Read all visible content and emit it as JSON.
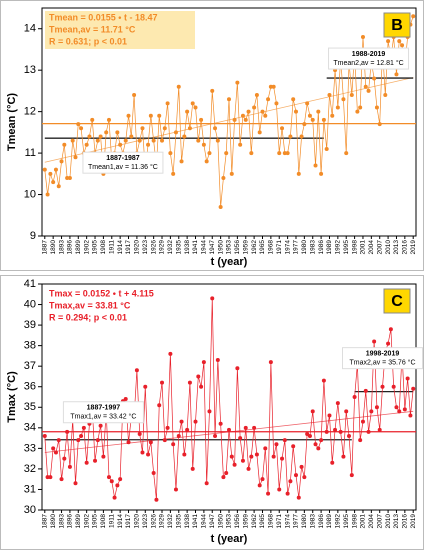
{
  "chart_data": [
    {
      "type": "line",
      "letter": "B",
      "ylabel": "Tmean (°C)",
      "xlabel": "t (year)",
      "color": "#f28c28",
      "x": [
        1887,
        1888,
        1889,
        1890,
        1891,
        1892,
        1893,
        1894,
        1895,
        1896,
        1897,
        1898,
        1899,
        1900,
        1901,
        1902,
        1903,
        1904,
        1905,
        1906,
        1907,
        1908,
        1909,
        1910,
        1911,
        1912,
        1913,
        1914,
        1915,
        1916,
        1917,
        1918,
        1919,
        1920,
        1921,
        1922,
        1923,
        1924,
        1925,
        1926,
        1927,
        1928,
        1929,
        1930,
        1931,
        1932,
        1933,
        1934,
        1935,
        1936,
        1937,
        1938,
        1939,
        1940,
        1941,
        1942,
        1943,
        1944,
        1945,
        1946,
        1947,
        1948,
        1949,
        1950,
        1951,
        1952,
        1953,
        1954,
        1955,
        1956,
        1957,
        1958,
        1959,
        1960,
        1961,
        1962,
        1963,
        1964,
        1965,
        1966,
        1967,
        1968,
        1969,
        1970,
        1971,
        1972,
        1973,
        1974,
        1975,
        1976,
        1977,
        1978,
        1979,
        1980,
        1981,
        1982,
        1983,
        1984,
        1985,
        1986,
        1987,
        1988,
        1989,
        1990,
        1991,
        1992,
        1993,
        1994,
        1995,
        1996,
        1997,
        1998,
        1999,
        2000,
        2001,
        2002,
        2003,
        2004,
        2005,
        2006,
        2007,
        2008,
        2009,
        2010,
        2011,
        2012,
        2013,
        2014,
        2015,
        2016,
        2017,
        2018,
        2019
      ],
      "values": [
        10.6,
        10.0,
        10.5,
        10.3,
        10.6,
        10.2,
        10.8,
        11.2,
        10.4,
        10.4,
        11.3,
        10.9,
        11.7,
        11.6,
        11.0,
        11.2,
        11.4,
        11.8,
        11.0,
        11.3,
        11.4,
        10.5,
        11.5,
        11.8,
        10.8,
        11.0,
        11.5,
        11.2,
        11.0,
        11.3,
        11.9,
        11.4,
        12.4,
        11.0,
        11.3,
        11.6,
        10.6,
        11.2,
        11.9,
        11.3,
        10.7,
        11.9,
        11.3,
        11.6,
        12.2,
        11.0,
        10.5,
        11.5,
        12.6,
        10.8,
        11.4,
        12.0,
        11.6,
        12.2,
        12.1,
        11.3,
        11.8,
        11.2,
        10.8,
        11.0,
        12.5,
        11.6,
        11.3,
        9.7,
        10.4,
        11.0,
        12.3,
        10.5,
        11.8,
        12.7,
        11.2,
        11.9,
        11.8,
        12.0,
        11.0,
        12.1,
        12.4,
        11.5,
        12.0,
        11.9,
        12.3,
        12.6,
        12.6,
        12.2,
        11.0,
        11.6,
        11.0,
        11.0,
        11.4,
        12.3,
        12.0,
        10.5,
        11.4,
        11.7,
        12.2,
        11.9,
        11.8,
        10.7,
        12.0,
        10.5,
        11.8,
        11.1,
        12.4,
        11.9,
        13.0,
        12.1,
        13.3,
        12.3,
        11.0,
        13.2,
        12.4,
        13.4,
        12.0,
        12.1,
        13.8,
        12.6,
        12.5,
        13.2,
        12.8,
        12.1,
        11.7,
        13.5,
        12.4,
        13.7,
        13.3,
        13.8,
        12.9,
        13.7,
        13.6,
        13.1,
        13.8,
        14.1,
        14.3
      ],
      "xlim": [
        1886,
        2020
      ],
      "xticks": [
        1887,
        1890,
        1893,
        1896,
        1899,
        1902,
        1905,
        1908,
        1911,
        1914,
        1917,
        1920,
        1923,
        1926,
        1929,
        1932,
        1935,
        1938,
        1941,
        1944,
        1947,
        1950,
        1953,
        1956,
        1959,
        1962,
        1965,
        1968,
        1971,
        1974,
        1977,
        1980,
        1983,
        1986,
        1989,
        1992,
        1995,
        1998,
        2001,
        2004,
        2007,
        2010,
        2013,
        2016,
        2019
      ],
      "ylim": [
        9,
        14.5
      ],
      "yticks": [
        9,
        10,
        11,
        12,
        13,
        14
      ],
      "annotation": [
        "Tmean = 0.0155 • t - 18.47",
        "Tmean,av = 11.71 °C",
        "R = 0.631; p < 0.01"
      ],
      "trend": {
        "slope": 0.0155,
        "intercept": -18.47
      },
      "mean": 11.71,
      "periods": [
        {
          "label": "1887-1987",
          "text": "Tmean1,av = 11.36 °C",
          "from": 1887,
          "to": 1987,
          "value": 11.36
        },
        {
          "label": "1988-2019",
          "text": "Tmean2,av = 12.81 °C",
          "from": 1988,
          "to": 2019,
          "value": 12.81
        }
      ]
    },
    {
      "type": "line",
      "letter": "C",
      "ylabel": "Tmax (°C)",
      "xlabel": "t (year)",
      "color": "#e8202a",
      "x": [
        1887,
        1888,
        1889,
        1890,
        1891,
        1892,
        1893,
        1894,
        1895,
        1896,
        1897,
        1898,
        1899,
        1900,
        1901,
        1902,
        1903,
        1904,
        1905,
        1906,
        1907,
        1908,
        1909,
        1910,
        1911,
        1912,
        1913,
        1914,
        1915,
        1916,
        1917,
        1918,
        1919,
        1920,
        1921,
        1922,
        1923,
        1924,
        1925,
        1926,
        1927,
        1928,
        1929,
        1930,
        1931,
        1932,
        1933,
        1934,
        1935,
        1936,
        1937,
        1938,
        1939,
        1940,
        1941,
        1942,
        1943,
        1944,
        1945,
        1946,
        1947,
        1948,
        1949,
        1950,
        1951,
        1952,
        1953,
        1954,
        1955,
        1956,
        1957,
        1958,
        1959,
        1960,
        1961,
        1962,
        1963,
        1964,
        1965,
        1966,
        1967,
        1968,
        1969,
        1970,
        1971,
        1972,
        1973,
        1974,
        1975,
        1976,
        1977,
        1978,
        1979,
        1980,
        1981,
        1982,
        1983,
        1984,
        1985,
        1986,
        1987,
        1988,
        1989,
        1990,
        1991,
        1992,
        1993,
        1994,
        1995,
        1996,
        1997,
        1998,
        1999,
        2000,
        2001,
        2002,
        2003,
        2004,
        2005,
        2006,
        2007,
        2008,
        2009,
        2010,
        2011,
        2012,
        2013,
        2014,
        2015,
        2016,
        2017,
        2018,
        2019
      ],
      "values": [
        33.6,
        31.6,
        31.6,
        33.0,
        32.8,
        33.4,
        31.5,
        32.5,
        33.8,
        32.1,
        34.4,
        31.3,
        33.4,
        33.6,
        34.0,
        32.3,
        34.2,
        35.0,
        32.4,
        33.4,
        34.1,
        32.6,
        34.8,
        31.6,
        31.4,
        30.6,
        31.2,
        31.5,
        35.3,
        35.4,
        33.3,
        34.5,
        34.5,
        36.8,
        33.7,
        32.8,
        36.0,
        32.7,
        33.3,
        31.8,
        30.5,
        35.1,
        36.2,
        33.4,
        34.0,
        37.6,
        33.2,
        31.0,
        33.6,
        34.3,
        32.7,
        33.9,
        36.2,
        32.0,
        34.3,
        36.5,
        36.0,
        37.2,
        31.3,
        34.8,
        40.3,
        33.6,
        37.3,
        34.2,
        31.6,
        31.8,
        33.9,
        32.6,
        32.2,
        36.9,
        33.5,
        32.4,
        34.0,
        32.0,
        32.6,
        34.0,
        32.7,
        31.2,
        31.5,
        33.0,
        30.8,
        37.2,
        32.6,
        33.2,
        31.0,
        32.5,
        33.4,
        30.8,
        31.4,
        33.1,
        31.7,
        30.6,
        32.1,
        31.6,
        33.7,
        33.6,
        34.8,
        33.2,
        33.0,
        33.4,
        36.3,
        33.8,
        34.6,
        32.3,
        33.9,
        35.2,
        33.8,
        32.6,
        34.8,
        33.6,
        31.7,
        35.5,
        37.1,
        33.4,
        34.3,
        35.8,
        33.8,
        34.8,
        38.2,
        35.0,
        33.9,
        36.0,
        37.7,
        38.1,
        38.8,
        36.0,
        35.0,
        34.8,
        37.6,
        34.9,
        36.4,
        34.6,
        35.9
      ],
      "xlim": [
        1886,
        2020
      ],
      "xticks": [
        1887,
        1890,
        1893,
        1896,
        1899,
        1902,
        1905,
        1908,
        1911,
        1914,
        1917,
        1920,
        1923,
        1926,
        1929,
        1932,
        1935,
        1938,
        1941,
        1944,
        1947,
        1950,
        1953,
        1956,
        1959,
        1962,
        1965,
        1968,
        1971,
        1974,
        1977,
        1980,
        1983,
        1986,
        1989,
        1992,
        1995,
        1998,
        2001,
        2004,
        2007,
        2010,
        2013,
        2016,
        2019
      ],
      "ylim": [
        30,
        41
      ],
      "yticks": [
        30,
        31,
        32,
        33,
        34,
        35,
        36,
        37,
        38,
        39,
        40,
        41
      ],
      "annotation": [
        "Tmax = 0.0152 • t + 4.115",
        "Tmax,av = 33.81 °C",
        "R = 0.294; p < 0.01"
      ],
      "trend": {
        "slope": 0.0152,
        "intercept": 4.115
      },
      "mean": 33.81,
      "periods": [
        {
          "label": "1887-1997",
          "text": "Tmax1,av = 33.42 °C",
          "from": 1887,
          "to": 1997,
          "value": 33.42
        },
        {
          "label": "1998-2019",
          "text": "Tmax2,av = 35.76 °C",
          "from": 1998,
          "to": 2019,
          "value": 35.76
        }
      ]
    }
  ]
}
